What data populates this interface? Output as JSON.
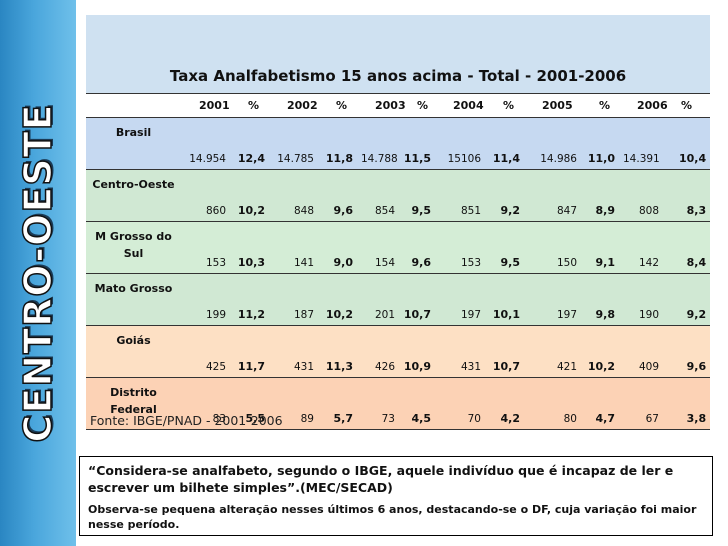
{
  "sidebar": {
    "title": "CENTRO-OESTE"
  },
  "table": {
    "title": "Taxa Analfabetismo 15 anos acima - Total - 2001-2006",
    "headers": [
      "2001",
      "%",
      "2002",
      "%",
      "2003",
      "%",
      "2004",
      "%",
      "2005",
      "%",
      "2006",
      "%"
    ],
    "rows": [
      {
        "label": "Brasil",
        "cells": [
          "14.954",
          "12,4",
          "14.785",
          "11,8",
          "14.788",
          "11,5",
          "15106",
          "11,4",
          "14.986",
          "11,0",
          "14.391",
          "10,4"
        ]
      },
      {
        "label": "Centro-Oeste",
        "cells": [
          "860",
          "10,2",
          "848",
          "9,6",
          "854",
          "9,5",
          "851",
          "9,2",
          "847",
          "8,9",
          "808",
          "8,3"
        ]
      },
      {
        "label": "M Grosso do Sul",
        "cells": [
          "153",
          "10,3",
          "141",
          "9,0",
          "154",
          "9,6",
          "153",
          "9,5",
          "150",
          "9,1",
          "142",
          "8,4"
        ]
      },
      {
        "label": "Mato Grosso",
        "cells": [
          "199",
          "11,2",
          "187",
          "10,2",
          "201",
          "10,7",
          "197",
          "10,1",
          "197",
          "9,8",
          "190",
          "9,2"
        ]
      },
      {
        "label": "Goiás",
        "cells": [
          "425",
          "11,7",
          "431",
          "11,3",
          "426",
          "10,9",
          "431",
          "10,7",
          "421",
          "10,2",
          "409",
          "9,6"
        ]
      },
      {
        "label": "Distrito Federal",
        "cells": [
          "83",
          "5,5",
          "89",
          "5,7",
          "73",
          "4,5",
          "70",
          "4,2",
          "80",
          "4,7",
          "67",
          "3,8"
        ]
      }
    ]
  },
  "source": "Fonte: IBGE/PNAD - 2001-2006",
  "note": {
    "quote": "“Considera-se analfabeto, segundo o IBGE, aquele indivíduo que é incapaz de ler e escrever um bilhete simples”.(MEC/SECAD)",
    "observation": "Observa-se pequena alteração nesses últimos 6 anos, destacando-se o DF, cuja variação foi maior nesse período."
  }
}
